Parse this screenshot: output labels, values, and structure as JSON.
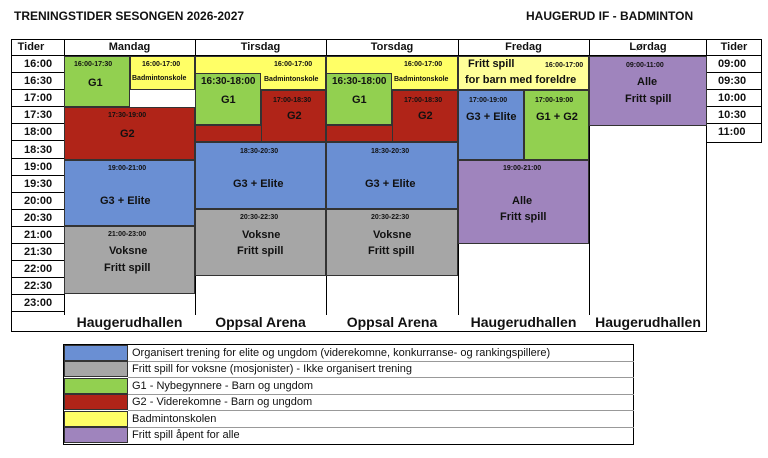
{
  "header": {
    "left_title": "TRENINGSTIDER SESONGEN 2026-2027",
    "right_title": "HAUGERUD IF - BADMINTON"
  },
  "columns": {
    "tider": "Tider",
    "mandag": "Mandag",
    "tirsdag": "Tirsdag",
    "torsdag": "Torsdag",
    "fredag": "Fredag",
    "lordag": "Lørdag",
    "tider_right": "Tider"
  },
  "times_left": [
    "16:00",
    "16:30",
    "17:00",
    "17:30",
    "18:00",
    "18:30",
    "19:00",
    "19:30",
    "20:00",
    "20:30",
    "21:00",
    "21:30",
    "22:00",
    "22:30",
    "23:00"
  ],
  "times_right": [
    "09:00",
    "09:30",
    "10:00",
    "10:30",
    "11:00"
  ],
  "mandag": {
    "g1_time": "16:00-17:30",
    "g1_label": "G1",
    "badm_time": "16:00-17:00",
    "badm_label": "Badmintonskole",
    "g2_time": "17:30-19:00",
    "g2_label": "G2",
    "elite_time": "19:00-21:00",
    "elite_label": "G3 + Elite",
    "voks_time": "21:00-23:00",
    "voks_label1": "Voksne",
    "voks_label2": "Fritt spill"
  },
  "tirsdag": {
    "badm_time": "16:00-17:00",
    "badm_label": "Badmintonskole",
    "g1_time": "16:30-18:00",
    "g1_label": "G1",
    "g2_time": "17:00-18:30",
    "g2_label": "G2",
    "elite_time": "18:30-20:30",
    "elite_label": "G3 + Elite",
    "voks_time": "20:30-22:30",
    "voks_label1": "Voksne",
    "voks_label2": "Fritt spill"
  },
  "torsdag": {
    "badm_time": "16:00-17:00",
    "badm_label": "Badmintonskole",
    "g1_time": "16:30-18:00",
    "g1_label": "G1",
    "g2_time": "17:00-18:30",
    "g2_label": "G2",
    "elite_time": "18:30-20:30",
    "elite_label": "G3 + Elite",
    "voks_time": "20:30-22:30",
    "voks_label1": "Voksne",
    "voks_label2": "Fritt spill"
  },
  "fredag": {
    "fritt_label1": "Fritt spill",
    "fritt_label2": "for barn med foreldre",
    "fritt_time": "16:00-17:00",
    "elite_time": "17:00-19:00",
    "elite_label": "G3 + Elite",
    "g12_time": "17:00-19:00",
    "g12_label": "G1 + G2",
    "alle_time": "19:00-21:00",
    "alle_label1": "Alle",
    "alle_label2": "Fritt spill"
  },
  "lordag": {
    "time": "09:00-11:00",
    "label1": "Alle",
    "label2": "Fritt spill"
  },
  "venues": [
    "Haugerudhallen",
    "Oppsal Arena",
    "Oppsal Arena",
    "Haugerudhallen",
    "Haugerudhallen"
  ],
  "legend": [
    {
      "color": "#6a8fd3",
      "text": "Organisert trening for elite og ungdom (viderekomne, konkurranse- og rankingspillere)"
    },
    {
      "color": "#a6a6a6",
      "text": "Fritt spill for voksne (mosjonister) - Ikke organisert trening"
    },
    {
      "color": "#92d050",
      "text": "G1 - Nybegynnere - Barn og ungdom"
    },
    {
      "color": "#b02418",
      "text": "G2 - Viderekomne - Barn og ungdom"
    },
    {
      "color": "#ffff66",
      "text": "Badmintonskolen"
    },
    {
      "color": "#9f84bd",
      "text": "Fritt spill åpent for alle"
    }
  ]
}
